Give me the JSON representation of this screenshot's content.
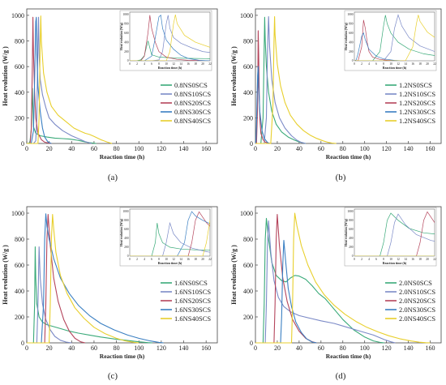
{
  "chart_data": [
    {
      "panel": "(a)",
      "type": "line",
      "xlabel": "Reaction time (h)",
      "ylabel": "Heat evolution (W/g )",
      "xlim": [
        0,
        170
      ],
      "ylim": [
        0,
        1050
      ],
      "xticks": [
        0,
        20,
        40,
        60,
        80,
        100,
        120,
        140,
        160
      ],
      "yticks": [
        0,
        200,
        400,
        600,
        800,
        1000
      ],
      "legend": "center-right",
      "series": [
        {
          "name": "0.8NS0SCS",
          "color": "#3aaa79",
          "x": [
            0,
            2,
            3,
            4,
            5,
            6,
            8,
            12,
            18,
            25,
            32,
            38,
            42,
            45,
            48,
            52,
            56,
            60,
            62
          ],
          "y": [
            0,
            2,
            20,
            110,
            430,
            130,
            80,
            60,
            50,
            42,
            38,
            34,
            30,
            25,
            20,
            12,
            6,
            2,
            0
          ]
        },
        {
          "name": "0.8NS10SCS",
          "color": "#7b8ac7",
          "x": [
            0,
            6,
            8,
            9,
            10,
            10.5,
            11,
            12,
            14,
            17,
            20,
            25,
            32,
            40,
            48,
            52,
            56,
            58
          ],
          "y": [
            0,
            0,
            20,
            200,
            800,
            985,
            700,
            500,
            380,
            280,
            200,
            150,
            100,
            60,
            30,
            15,
            4,
            0
          ]
        },
        {
          "name": "0.8NS20SCS",
          "color": "#b5455c",
          "x": [
            0,
            3,
            4,
            5,
            5.5,
            6,
            7,
            8,
            10,
            13,
            16,
            20,
            22
          ],
          "y": [
            0,
            0,
            100,
            600,
            985,
            700,
            400,
            200,
            80,
            30,
            10,
            2,
            0
          ]
        },
        {
          "name": "0.8NS30SCS",
          "color": "#3a7fc2",
          "x": [
            0,
            4,
            6,
            7,
            8,
            8.5,
            9,
            10,
            12,
            14,
            16,
            19,
            22
          ],
          "y": [
            0,
            0,
            100,
            500,
            950,
            985,
            700,
            450,
            250,
            120,
            50,
            10,
            0
          ]
        },
        {
          "name": "0.8NS40SCS",
          "color": "#e8cf2c",
          "x": [
            0,
            10,
            11,
            12,
            12.5,
            13,
            15,
            18,
            22,
            28,
            35,
            42,
            48,
            52,
            56,
            60,
            66,
            72,
            76
          ],
          "y": [
            0,
            0,
            200,
            800,
            995,
            800,
            550,
            400,
            290,
            220,
            170,
            120,
            95,
            80,
            70,
            55,
            30,
            10,
            0
          ]
        }
      ],
      "inset": {
        "xlabel": "Reaction time (h)",
        "ylabel": "Heat evolution (W/g)",
        "xlim": [
          0,
          22
        ],
        "ylim": [
          0,
          1050
        ],
        "xticks": [
          0,
          2,
          4,
          6,
          8,
          10,
          12,
          14,
          16,
          18,
          20,
          22
        ],
        "yticks": [
          0,
          200,
          400,
          600,
          800,
          1000
        ]
      }
    },
    {
      "panel": "(b)",
      "type": "line",
      "xlabel": "Reaction time (h)",
      "ylabel": "Heat evolution (W/g )",
      "xlim": [
        0,
        170
      ],
      "ylim": [
        0,
        1050
      ],
      "xticks": [
        0,
        20,
        40,
        60,
        80,
        100,
        120,
        140,
        160
      ],
      "yticks": [
        0,
        200,
        400,
        600,
        800,
        1000
      ],
      "legend": "center-right",
      "series": [
        {
          "name": "1.2NS0SCS",
          "color": "#3aaa79",
          "x": [
            0,
            5,
            7,
            8,
            8.5,
            9,
            10,
            12,
            15,
            19,
            24,
            30,
            36,
            40,
            44,
            46
          ],
          "y": [
            0,
            0,
            200,
            750,
            985,
            800,
            600,
            400,
            250,
            150,
            90,
            50,
            25,
            12,
            4,
            0
          ]
        },
        {
          "name": "1.2NS10SCS",
          "color": "#7b8ac7",
          "x": [
            0,
            8,
            10,
            11,
            12,
            13,
            15,
            18,
            22,
            27,
            33,
            38,
            42,
            46
          ],
          "y": [
            0,
            0,
            200,
            700,
            990,
            750,
            500,
            320,
            200,
            120,
            60,
            25,
            8,
            0
          ]
        },
        {
          "name": "1.2NS20SCS",
          "color": "#b5455c",
          "x": [
            0,
            1,
            2,
            2.5,
            3,
            3.5,
            4,
            5,
            7,
            9,
            12,
            14
          ],
          "y": [
            0,
            0,
            300,
            880,
            700,
            400,
            200,
            80,
            30,
            10,
            2,
            0
          ]
        },
        {
          "name": "1.2NS30SCS",
          "color": "#3a7fc2",
          "x": [
            0,
            0.5,
            1,
            2,
            2.5,
            3,
            4,
            6,
            8,
            11,
            13
          ],
          "y": [
            0,
            20,
            150,
            530,
            600,
            450,
            250,
            100,
            40,
            8,
            0
          ]
        },
        {
          "name": "1.2NS40SCS",
          "color": "#e8cf2c",
          "x": [
            0,
            14,
            16,
            17,
            17.5,
            18,
            20,
            23,
            27,
            32,
            38,
            44,
            50,
            56,
            62,
            66,
            70,
            74
          ],
          "y": [
            0,
            0,
            300,
            800,
            990,
            850,
            620,
            450,
            320,
            220,
            150,
            100,
            65,
            40,
            20,
            10,
            3,
            0
          ]
        }
      ],
      "inset": {
        "xlabel": "Reaction time (h)",
        "ylabel": "Heat evolution (W/g)",
        "xlim": [
          0,
          22
        ],
        "ylim": [
          0,
          1050
        ],
        "xticks": [
          0,
          2,
          4,
          6,
          8,
          10,
          12,
          14,
          16,
          18,
          20,
          22
        ],
        "yticks": [
          0,
          200,
          400,
          600,
          800,
          1000
        ]
      }
    },
    {
      "panel": "(c)",
      "type": "line",
      "xlabel": "Reaction time (h)",
      "ylabel": "Heat evolution (W/g )",
      "xlim": [
        0,
        170
      ],
      "ylim": [
        0,
        1050
      ],
      "xticks": [
        0,
        20,
        40,
        60,
        80,
        100,
        120,
        140,
        160
      ],
      "yticks": [
        0,
        200,
        400,
        600,
        800,
        1000
      ],
      "legend": "center-right",
      "series": [
        {
          "name": "1.6NS0SCS",
          "color": "#3aaa79",
          "x": [
            0,
            6,
            7,
            7.5,
            8,
            9,
            11,
            14,
            18,
            24,
            30,
            38,
            46,
            56,
            66,
            78,
            90,
            100,
            108,
            112
          ],
          "y": [
            0,
            0,
            300,
            740,
            500,
            300,
            200,
            160,
            140,
            125,
            110,
            90,
            75,
            60,
            45,
            30,
            18,
            8,
            2,
            0
          ]
        },
        {
          "name": "1.6NS10SCS",
          "color": "#7b8ac7",
          "x": [
            0,
            9,
            10,
            11,
            12,
            14,
            17,
            21,
            25,
            30,
            35,
            40
          ],
          "y": [
            0,
            0,
            300,
            740,
            500,
            300,
            180,
            100,
            50,
            20,
            6,
            0
          ]
        },
        {
          "name": "1.6NS20SCS",
          "color": "#b5455c",
          "x": [
            0,
            16,
            17,
            18,
            19,
            21,
            24,
            28,
            33,
            38,
            43,
            48,
            52
          ],
          "y": [
            0,
            0,
            300,
            800,
            990,
            750,
            500,
            320,
            180,
            90,
            35,
            8,
            0
          ]
        },
        {
          "name": "1.6NS30SCS",
          "color": "#3a7fc2",
          "x": [
            0,
            13,
            15,
            16,
            17,
            18,
            20,
            24,
            30,
            38,
            46,
            56,
            66,
            78,
            90,
            100,
            110,
            118,
            122
          ],
          "y": [
            0,
            0,
            300,
            800,
            995,
            900,
            800,
            650,
            500,
            380,
            290,
            210,
            150,
            100,
            60,
            35,
            15,
            4,
            0
          ]
        },
        {
          "name": "1.6NS40SCS",
          "color": "#e8cf2c",
          "x": [
            0,
            20,
            21,
            22,
            23,
            24,
            26,
            30,
            36,
            43,
            51,
            60,
            70,
            80,
            88,
            96,
            100
          ],
          "y": [
            0,
            0,
            300,
            800,
            990,
            880,
            700,
            520,
            380,
            270,
            190,
            120,
            70,
            35,
            15,
            4,
            0
          ]
        }
      ],
      "inset": {
        "xlabel": "Reaction time (h)",
        "ylabel": "Heat evolution (W/g)",
        "xlim": [
          0,
          22
        ],
        "ylim": [
          0,
          1050
        ],
        "xticks": [
          0,
          2,
          4,
          6,
          8,
          10,
          12,
          14,
          16,
          18,
          20,
          22
        ],
        "yticks": [
          0,
          200,
          400,
          600,
          800,
          1000
        ]
      }
    },
    {
      "panel": "(d)",
      "type": "line",
      "xlabel": "Reaction time (h)",
      "ylabel": "Heat evolution (W/g )",
      "xlim": [
        0,
        170
      ],
      "ylim": [
        0,
        1050
      ],
      "xticks": [
        0,
        20,
        40,
        60,
        80,
        100,
        120,
        140,
        160
      ],
      "yticks": [
        0,
        200,
        400,
        600,
        800,
        1000
      ],
      "legend": "center-right",
      "series": [
        {
          "name": "2.0NS0SCS",
          "color": "#3aaa79",
          "x": [
            0,
            7,
            8,
            9,
            10,
            12,
            15,
            19,
            24,
            28,
            32,
            36,
            40,
            46,
            52,
            58,
            64,
            70,
            80,
            90,
            100,
            108,
            114,
            118
          ],
          "y": [
            0,
            0,
            300,
            800,
            960,
            800,
            620,
            520,
            480,
            470,
            500,
            520,
            515,
            490,
            440,
            380,
            340,
            280,
            180,
            100,
            45,
            15,
            4,
            0
          ]
        },
        {
          "name": "2.0NS10SCS",
          "color": "#7b8ac7",
          "x": [
            0,
            9,
            10,
            11,
            12,
            14,
            17,
            21,
            26,
            32,
            40,
            50,
            60,
            72,
            84,
            96,
            108,
            118,
            124,
            128
          ],
          "y": [
            0,
            0,
            300,
            750,
            940,
            700,
            480,
            350,
            280,
            240,
            210,
            190,
            170,
            150,
            120,
            90,
            60,
            25,
            8,
            0
          ]
        },
        {
          "name": "2.0NS20SCS",
          "color": "#b5455c",
          "x": [
            0,
            17,
            18,
            19,
            20,
            22,
            25,
            29,
            34,
            40,
            46,
            52,
            56
          ],
          "y": [
            0,
            0,
            300,
            800,
            990,
            750,
            500,
            320,
            180,
            90,
            35,
            8,
            0
          ]
        },
        {
          "name": "2.0NS30SCS",
          "color": "#3a7fc2",
          "x": [
            0,
            23,
            24,
            25,
            26,
            28,
            30,
            33,
            37,
            42,
            47,
            52,
            56
          ],
          "y": [
            0,
            0,
            200,
            600,
            790,
            600,
            420,
            280,
            160,
            80,
            30,
            6,
            0
          ]
        },
        {
          "name": "2.0NS40SCS",
          "color": "#e8cf2c",
          "x": [
            0,
            33,
            34,
            35,
            36,
            38,
            42,
            48,
            55,
            63,
            72,
            82,
            92,
            102,
            112,
            122,
            132,
            142,
            150,
            156,
            160
          ],
          "y": [
            0,
            0,
            300,
            800,
            1000,
            900,
            750,
            600,
            470,
            370,
            290,
            220,
            165,
            120,
            85,
            55,
            32,
            15,
            5,
            1,
            0
          ]
        }
      ],
      "inset": {
        "xlabel": "Reaction time (h)",
        "ylabel": "Heat evolution (W/g)",
        "xlim": [
          0,
          22
        ],
        "ylim": [
          0,
          1050
        ],
        "xticks": [
          0,
          2,
          4,
          6,
          8,
          10,
          12,
          14,
          16,
          18,
          20,
          22
        ],
        "yticks": [
          0,
          200,
          400,
          600,
          800,
          1000
        ]
      }
    }
  ]
}
